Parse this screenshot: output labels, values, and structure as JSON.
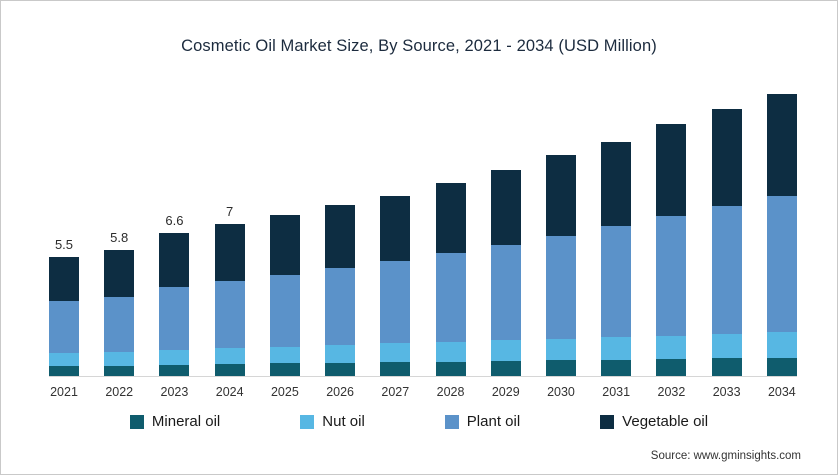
{
  "title": "Cosmetic Oil Market Size, By Source, 2021 - 2034 (USD Million)",
  "source": "Source: www.gminsights.com",
  "chart_data": {
    "type": "bar",
    "stacked": true,
    "title": "Cosmetic Oil Market Size, By Source, 2021 - 2034 (USD Million)",
    "xlabel": "",
    "ylabel": "",
    "ylim": [
      0,
      13.5
    ],
    "grid": false,
    "legend_position": "bottom",
    "categories": [
      "2021",
      "2022",
      "2023",
      "2024",
      "2025",
      "2026",
      "2027",
      "2028",
      "2029",
      "2030",
      "2031",
      "2032",
      "2033",
      "2034"
    ],
    "bar_total_labels": [
      "5.5",
      "5.8",
      "6.6",
      "7",
      "",
      "",
      "",
      "",
      "",
      "",
      "",
      "",
      "",
      ""
    ],
    "totals": [
      5.5,
      5.8,
      6.6,
      7.0,
      7.4,
      7.9,
      8.3,
      8.9,
      9.5,
      10.2,
      10.8,
      11.6,
      12.3,
      13.0
    ],
    "series": [
      {
        "name": "Mineral oil",
        "color": "#0f5c6d",
        "values": [
          0.45,
          0.48,
          0.52,
          0.55,
          0.58,
          0.61,
          0.64,
          0.66,
          0.69,
          0.72,
          0.75,
          0.78,
          0.81,
          0.85
        ]
      },
      {
        "name": "Nut oil",
        "color": "#57b7e3",
        "values": [
          0.6,
          0.63,
          0.7,
          0.74,
          0.78,
          0.82,
          0.86,
          0.9,
          0.95,
          1.0,
          1.04,
          1.08,
          1.12,
          1.17
        ]
      },
      {
        "name": "Plant oil",
        "color": "#5b92c9",
        "values": [
          2.4,
          2.55,
          2.9,
          3.1,
          3.3,
          3.55,
          3.8,
          4.1,
          4.4,
          4.75,
          5.1,
          5.5,
          5.9,
          6.3
        ]
      },
      {
        "name": "Vegetable oil",
        "color": "#0d2d42",
        "values": [
          2.05,
          2.14,
          2.48,
          2.61,
          2.74,
          2.92,
          3.0,
          3.24,
          3.46,
          3.73,
          3.91,
          4.24,
          4.47,
          4.68
        ]
      }
    ],
    "axis_line_color": "#d6d6d6"
  }
}
